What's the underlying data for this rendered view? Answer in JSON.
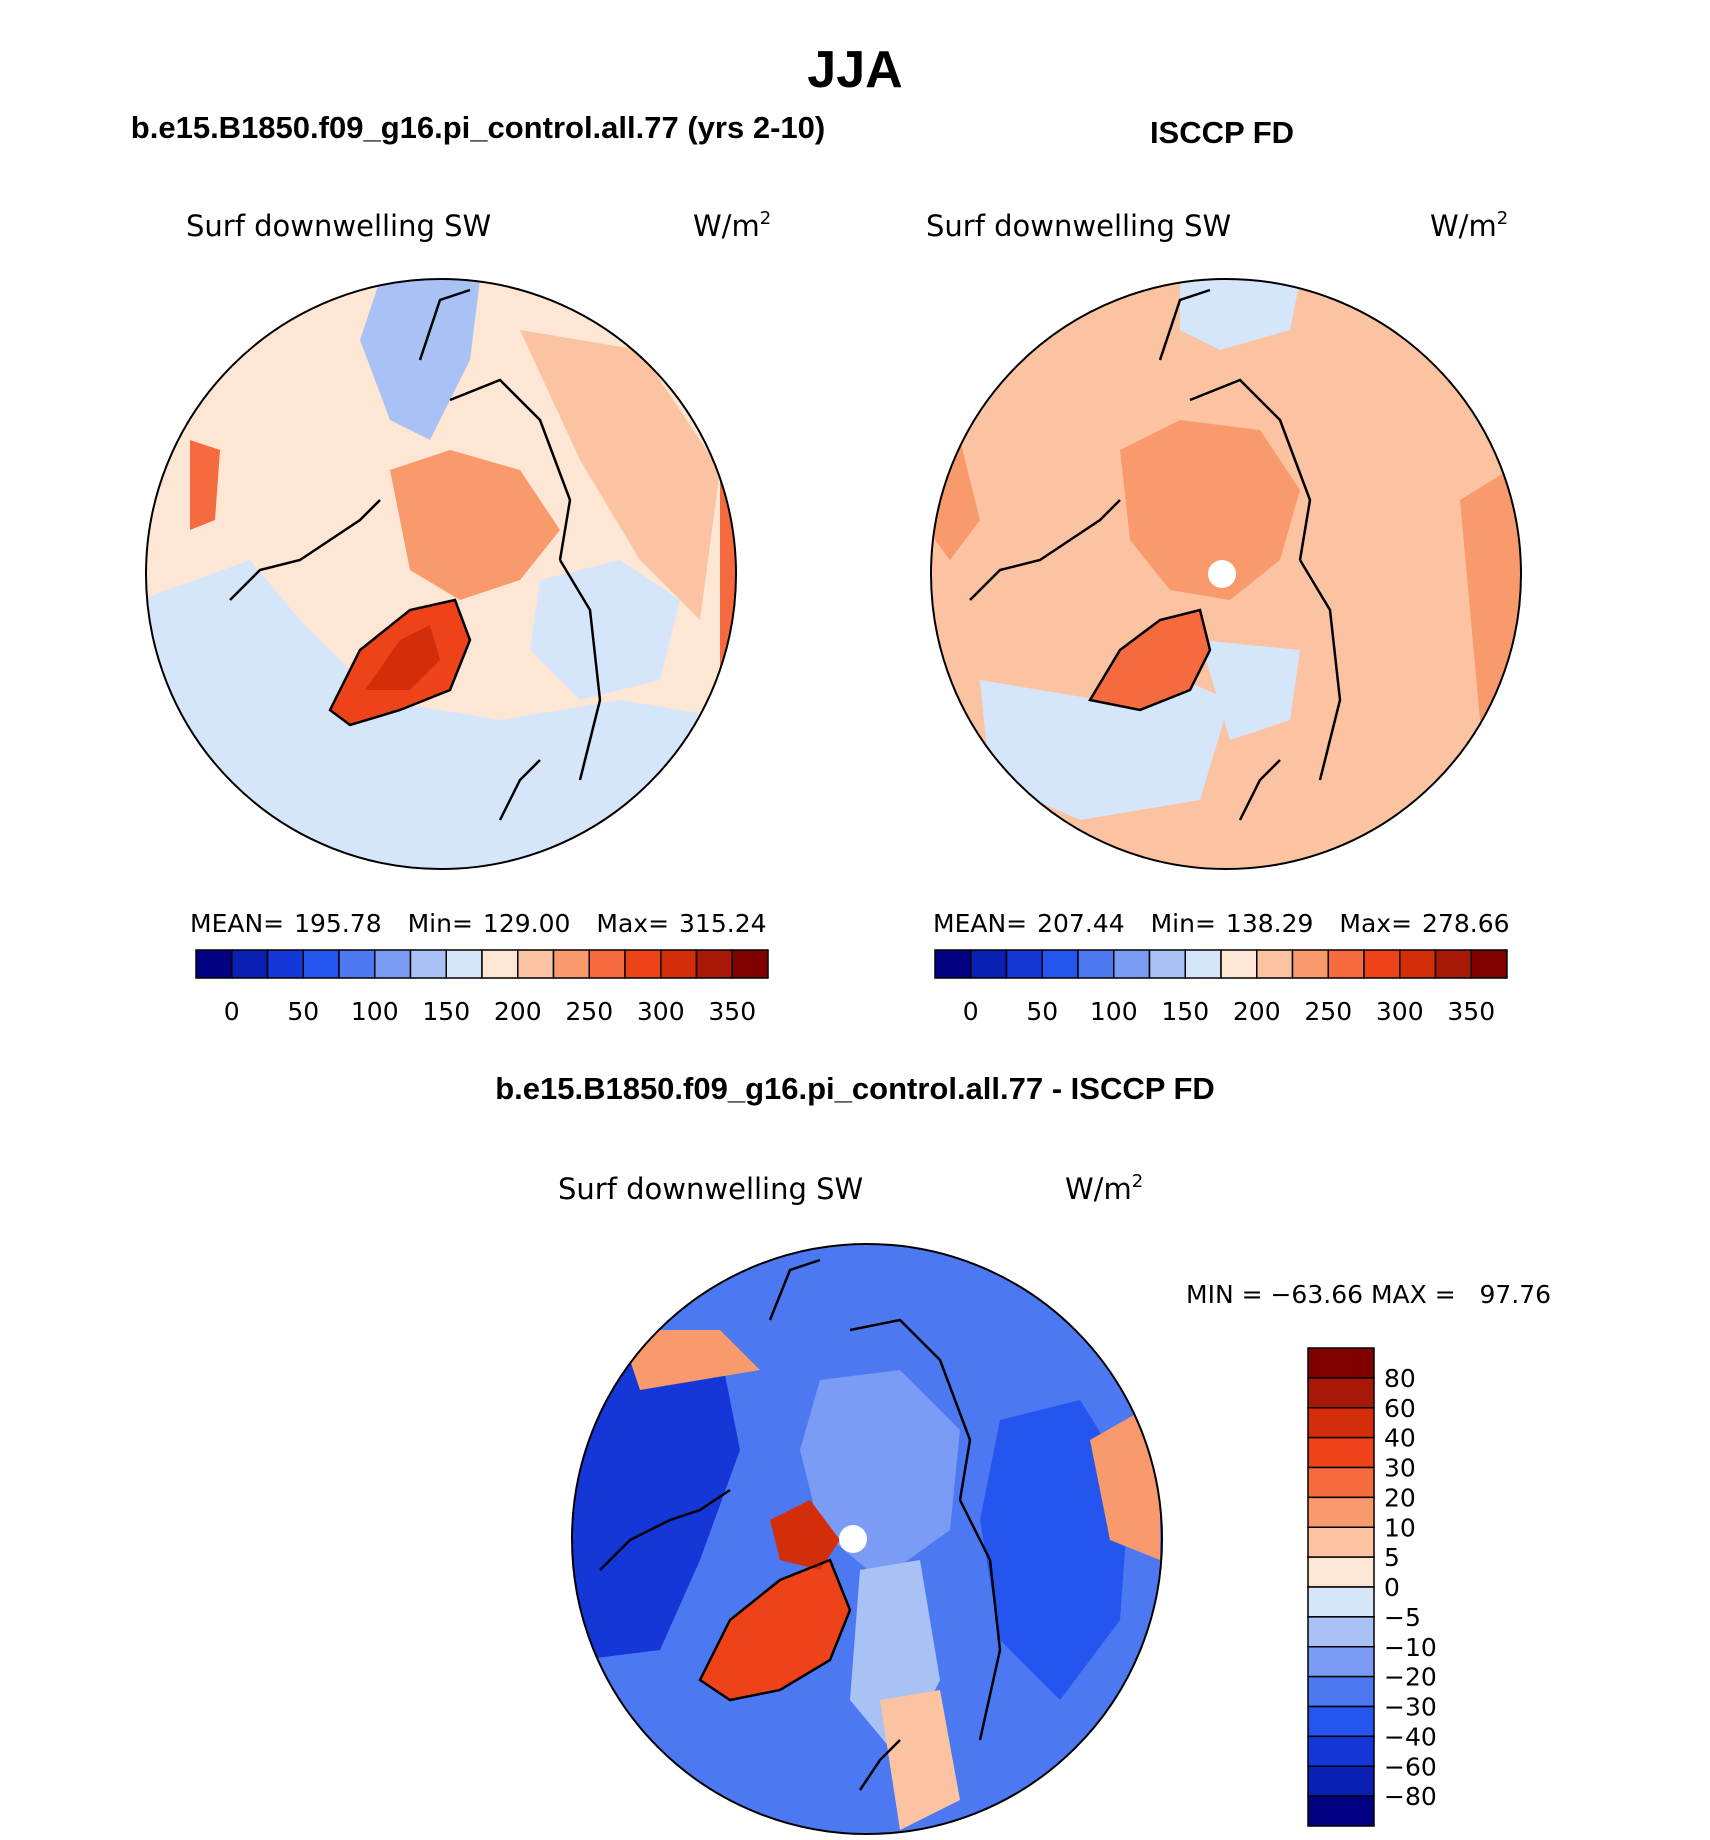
{
  "figure_title": "JJA",
  "chart_data": [
    {
      "type": "heatmap",
      "projection": "north-polar-stereographic",
      "case_title": "b.e15.B1850.f09_g16.pi_control.all.77 (yrs 2-10)",
      "variable": "Surf downwelling SW",
      "units": "W/m",
      "units_exp": "2",
      "stats": {
        "mean_label": "MEAN=",
        "mean": "195.78",
        "min_label": "Min=",
        "min": "129.00",
        "max_label": "Max=",
        "max": "315.24"
      },
      "colorbar": {
        "orientation": "horizontal",
        "labels": [
          "0",
          "50",
          "100",
          "150",
          "200",
          "250",
          "300",
          "350"
        ],
        "colors": [
          "#000080",
          "#0a20b4",
          "#1537d8",
          "#2455ee",
          "#4c78f2",
          "#7b9cf4",
          "#a9c2f6",
          "#d6e6fa",
          "#fde7d4",
          "#fbc3a1",
          "#f89a6c",
          "#f56a3e",
          "#ee4218",
          "#d42d0a",
          "#a81806",
          "#800000"
        ]
      },
      "regions": {
        "greenland": "270-300",
        "arctic_ocean": "225-250",
        "north_atlantic": "150-175",
        "north_pacific": "150-175",
        "siberia": "200-225"
      }
    },
    {
      "type": "heatmap",
      "projection": "north-polar-stereographic",
      "case_title": "ISCCP FD",
      "variable": "Surf downwelling SW",
      "units": "W/m",
      "units_exp": "2",
      "stats": {
        "mean_label": "MEAN=",
        "mean": "207.44",
        "min_label": "Min=",
        "min": "138.29",
        "max_label": "Max=",
        "max": "278.66"
      },
      "colorbar": {
        "orientation": "horizontal",
        "labels": [
          "0",
          "50",
          "100",
          "150",
          "200",
          "250",
          "300",
          "350"
        ],
        "colors": [
          "#000080",
          "#0a20b4",
          "#1537d8",
          "#2455ee",
          "#4c78f2",
          "#7b9cf4",
          "#a9c2f6",
          "#d6e6fa",
          "#fde7d4",
          "#fbc3a1",
          "#f89a6c",
          "#f56a3e",
          "#ee4218",
          "#d42d0a",
          "#a81806",
          "#800000"
        ]
      },
      "regions": {
        "greenland": "250-275",
        "arctic_ocean": "225-250",
        "north_atlantic": "150-175",
        "north_pacific": "150-175",
        "siberia": "225-250"
      }
    },
    {
      "type": "heatmap",
      "projection": "north-polar-stereographic",
      "case_title": "b.e15.B1850.f09_g16.pi_control.all.77 - ISCCP FD",
      "variable": "Surf downwelling SW",
      "units": "W/m",
      "units_exp": "2",
      "stats_text": "MIN = −63.66 MAX =   97.76",
      "colorbar": {
        "orientation": "vertical",
        "labels": [
          "80",
          "60",
          "40",
          "30",
          "20",
          "10",
          "5",
          "0",
          "−5",
          "−10",
          "−20",
          "−30",
          "−40",
          "−60",
          "−80"
        ],
        "colors": [
          "#800000",
          "#a81806",
          "#d42d0a",
          "#ee4218",
          "#f56a3e",
          "#f89a6c",
          "#fbc3a1",
          "#fde7d4",
          "#d6e6fa",
          "#a9c2f6",
          "#7b9cf4",
          "#4c78f2",
          "#2455ee",
          "#1537d8",
          "#0a20b4",
          "#000080"
        ]
      },
      "regions": {
        "greenland": "20-60",
        "canada": "-40 to -60",
        "siberia": "-30 to -40",
        "atlantic": "-20 to -30",
        "pacific_margin": "10-30"
      }
    }
  ]
}
